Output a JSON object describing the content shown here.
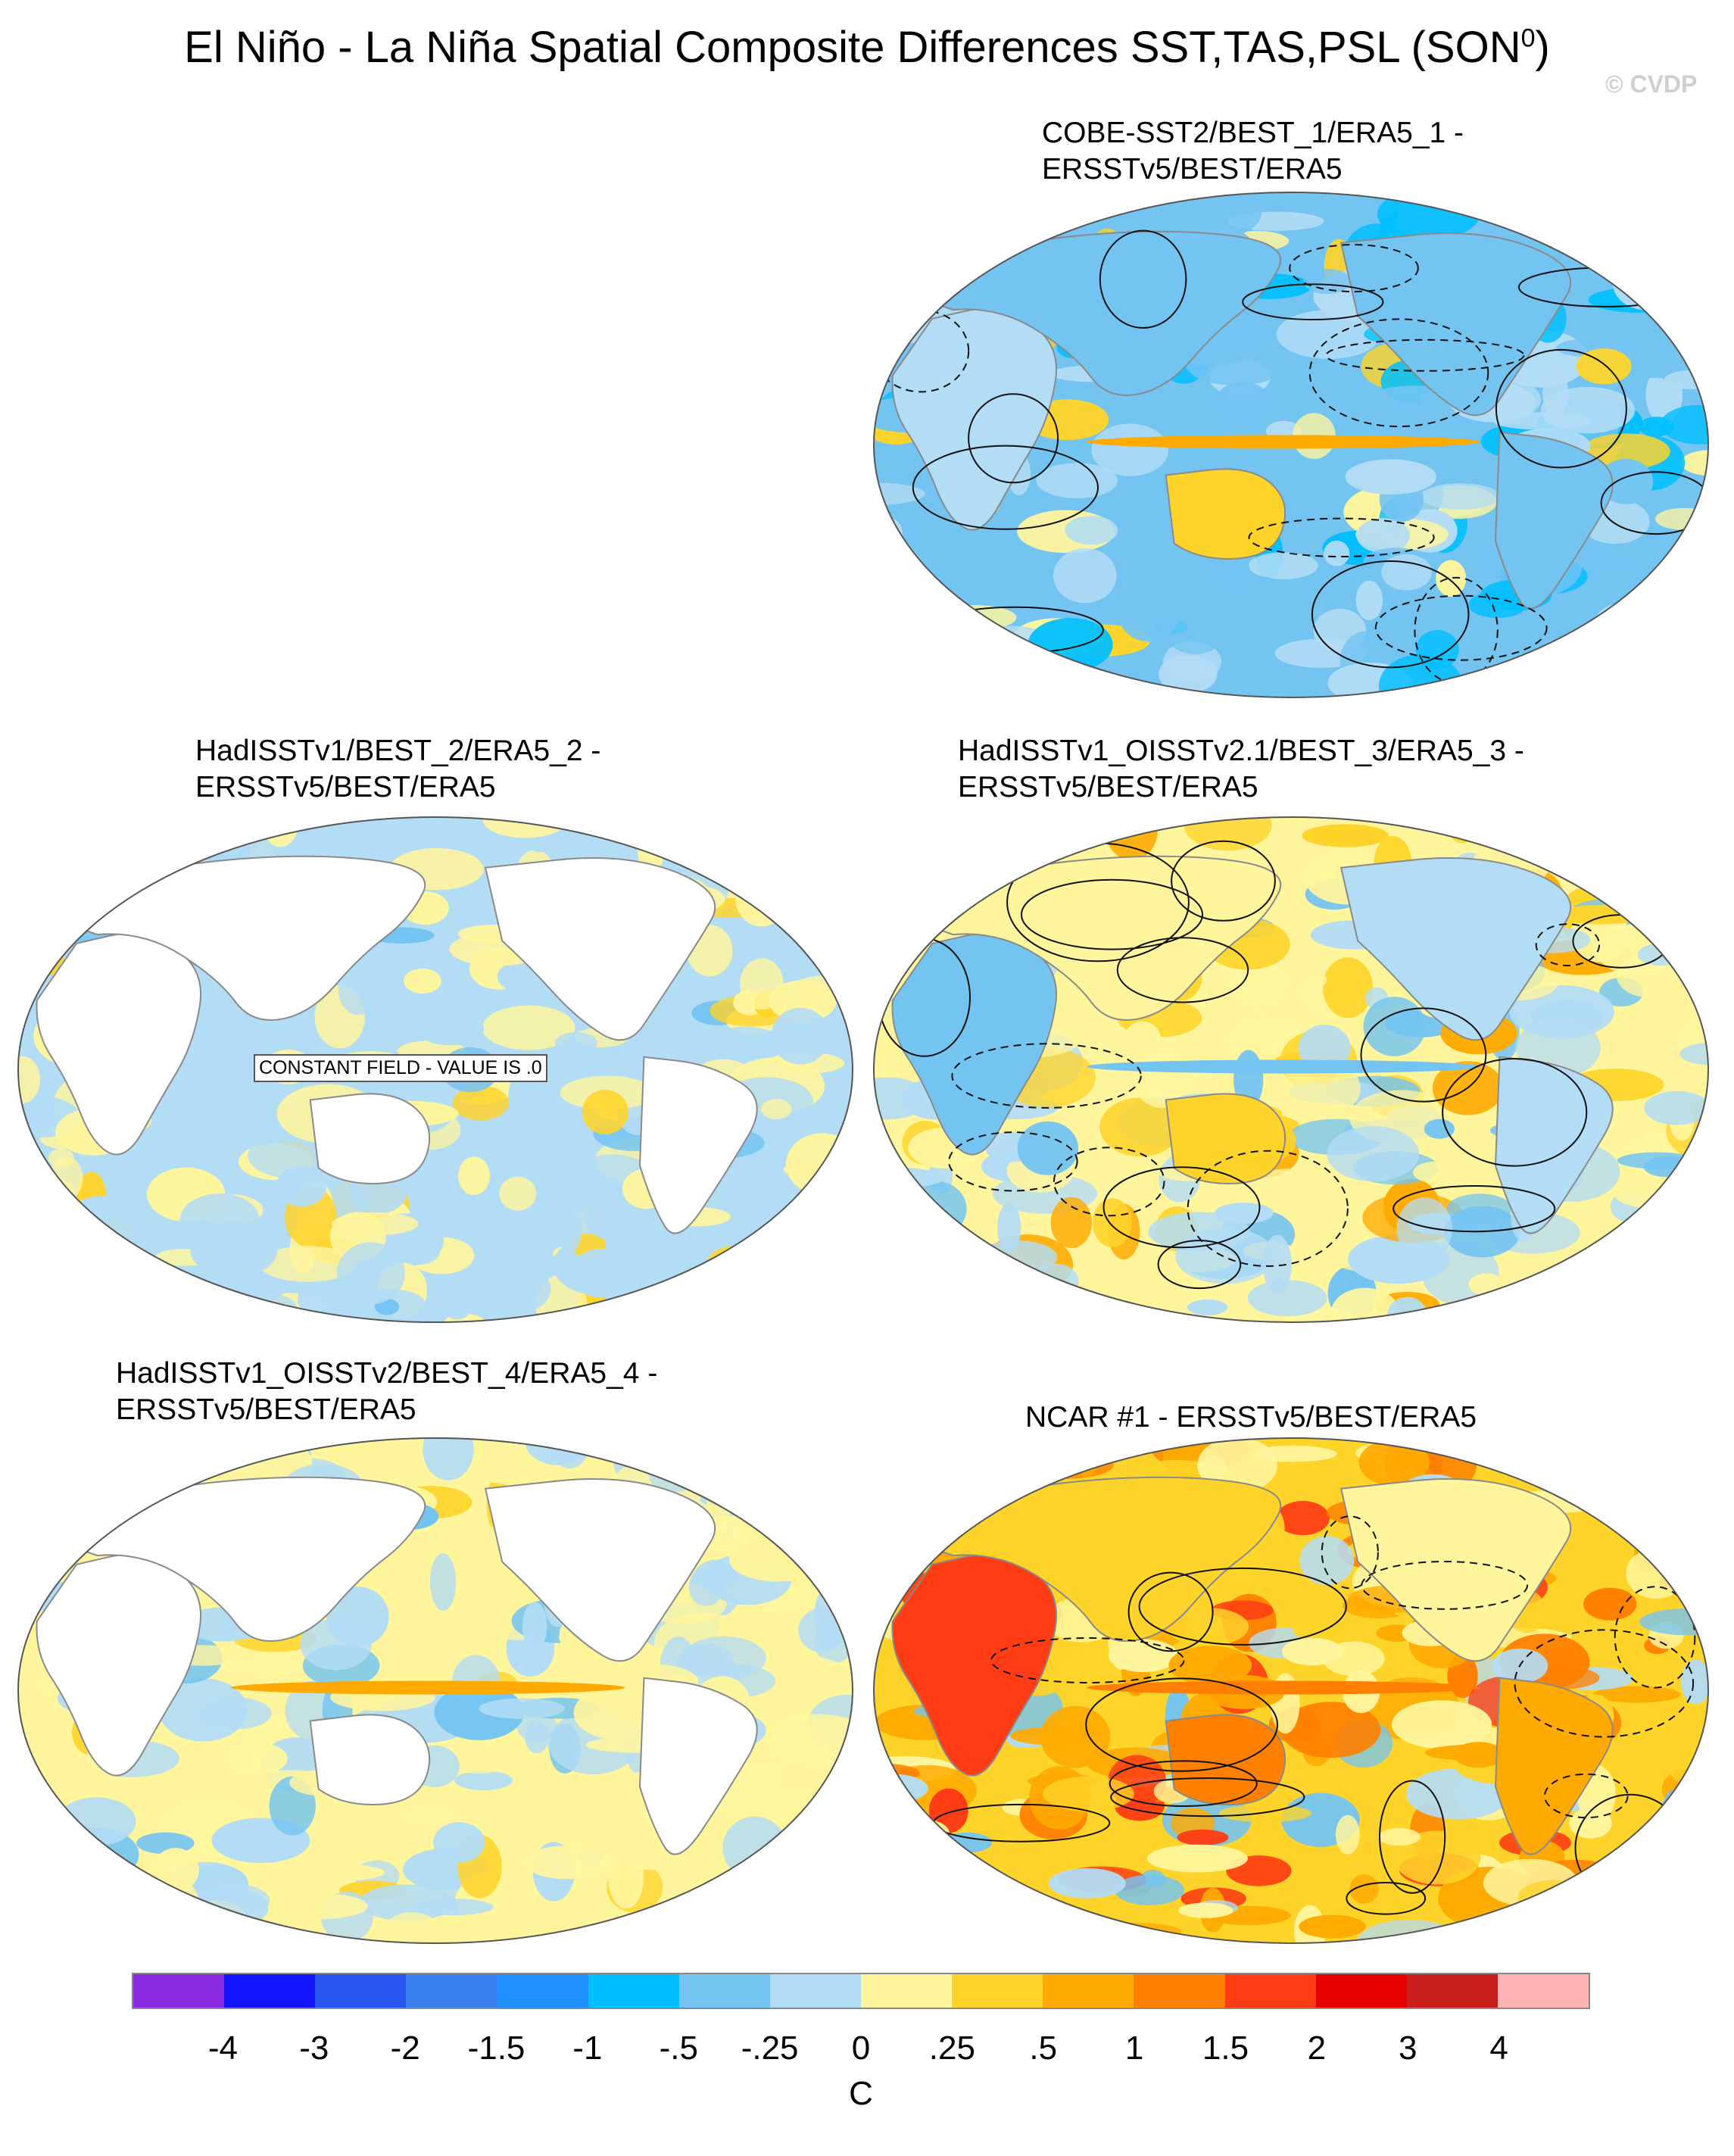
{
  "title": {
    "main": "El Niño - La Niña Spatial Composite Differences SST,TAS,PSL (SON",
    "superscript": "0",
    "close": ")"
  },
  "watermark": "© CVDP",
  "panels": [
    {
      "id": "cobe",
      "title_line1": "COBE-SST2/BEST_1/ERA5_1 -",
      "title_line2": "ERSSTv5/BEST/ERA5",
      "land_filled": true,
      "contours": true,
      "pattern": "cool"
    },
    {
      "id": "hadisst1",
      "title_line1": "HadISSTv1/BEST_2/ERA5_2 -",
      "title_line2": "ERSSTv5/BEST/ERA5",
      "land_filled": false,
      "contours": false,
      "pattern": "neutral",
      "annotation": "CONSTANT FIELD - VALUE IS .0"
    },
    {
      "id": "hadisst-oisst21",
      "title_line1": "HadISSTv1_OISSTv2.1/BEST_3/ERA5_3 -",
      "title_line2": "ERSSTv5/BEST/ERA5",
      "land_filled": true,
      "contours": true,
      "pattern": "mixed"
    },
    {
      "id": "hadisst-oisst2",
      "title_line1": "HadISSTv1_OISSTv2/BEST_4/ERA5_4 -",
      "title_line2": "ERSSTv5/BEST/ERA5",
      "land_filled": false,
      "contours": false,
      "pattern": "equatorial"
    },
    {
      "id": "ncar",
      "title_line1": "NCAR #1 - ERSSTv5/BEST/ERA5",
      "title_line2": "",
      "land_filled": true,
      "contours": true,
      "pattern": "warm"
    }
  ],
  "colorbar": {
    "unit": "C",
    "colors": [
      "#8b2be2",
      "#1414ff",
      "#2855f0",
      "#3a7fef",
      "#1e90ff",
      "#00bfff",
      "#74c4f2",
      "#b3dcf5",
      "#fff59d",
      "#ffd42a",
      "#ffaa00",
      "#ff7f00",
      "#ff3c14",
      "#e60000",
      "#c81e1e",
      "#ffb4b4"
    ],
    "ticks": [
      "-4",
      "-3",
      "-2",
      "-1.5",
      "-1",
      "-.5",
      "-.25",
      "0",
      ".25",
      ".5",
      "1",
      "1.5",
      "2",
      "3",
      "4"
    ]
  }
}
